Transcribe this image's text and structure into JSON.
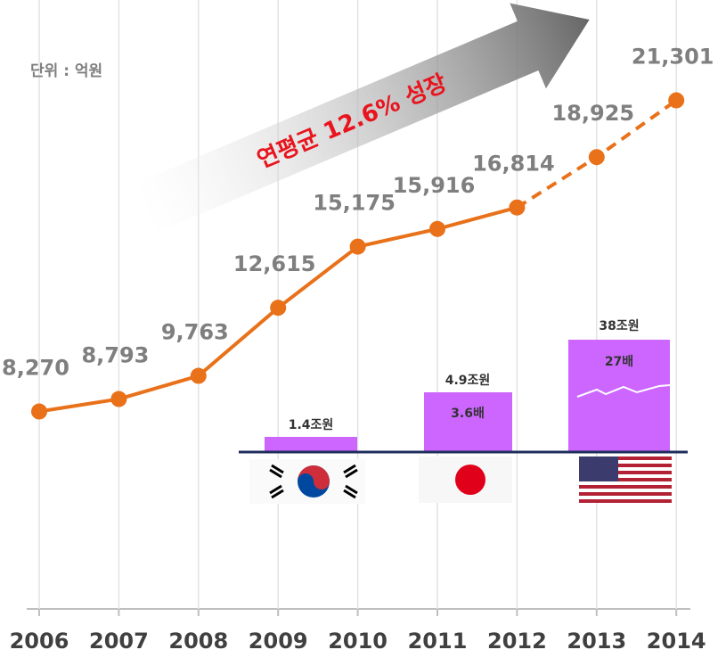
{
  "chart_data": {
    "type": "line",
    "unit_note": "단위 : 억원",
    "annotation": "연평균 12.6% 성장",
    "categories": [
      "2006",
      "2007",
      "2008",
      "2009",
      "2010",
      "2011",
      "2012",
      "2013",
      "2014"
    ],
    "values": [
      8270,
      8793,
      9763,
      12615,
      15175,
      15916,
      16814,
      18925,
      21301
    ],
    "value_labels": [
      "8,270",
      "8,793",
      "9,763",
      "12,615",
      "15,175",
      "15,916",
      "16,814",
      "18,925",
      "21,301"
    ],
    "color": "#e8711a",
    "dashed_from": "2012",
    "ylim": [
      0,
      25000
    ],
    "grid": true,
    "comparison": [
      {
        "label": "1.4조원"
      },
      {
        "label": "4.9조원",
        "ratio": "3.6배"
      },
      {
        "label": "38조원",
        "ratio": "27배"
      }
    ]
  }
}
